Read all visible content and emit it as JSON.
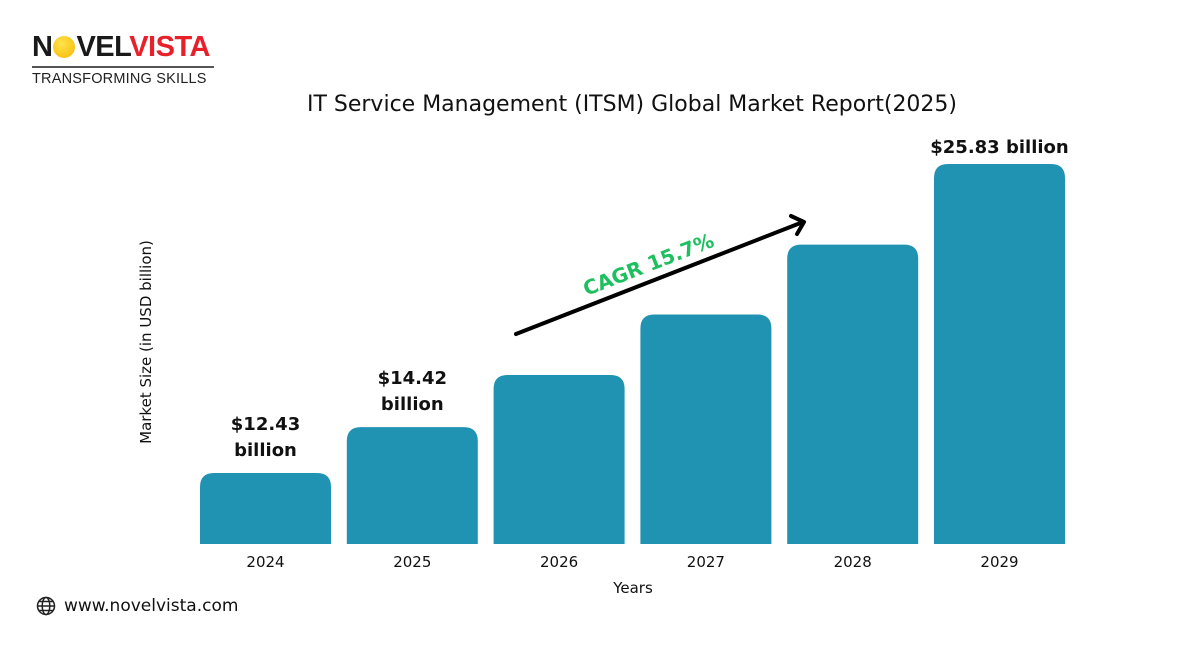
{
  "logo": {
    "word_part1": "N",
    "word_o": "O",
    "word_part2": "VEL",
    "word_part3": "VISTA",
    "tagline": "TRANSFORMING SKILLS"
  },
  "footer": {
    "website": "www.novelvista.com",
    "icon": "globe-icon"
  },
  "chart_data": {
    "type": "bar",
    "title": "IT Service Management (ITSM) Global Market Report(2025)",
    "xlabel": "Years",
    "ylabel": "Market Size (in USD billion)",
    "categories": [
      "2024",
      "2025",
      "2026",
      "2027",
      "2028",
      "2029"
    ],
    "values": [
      12.43,
      14.42,
      16.68,
      19.3,
      22.33,
      25.83
    ],
    "data_labels": [
      "$12.43 billion",
      "$14.42 billion",
      "",
      "",
      "",
      "$25.83 billion"
    ],
    "annotation": "CAGR 15.7%",
    "bar_color": "#2193b2",
    "annotation_color": "#1dbf5e",
    "grid": false,
    "legend": "none"
  }
}
